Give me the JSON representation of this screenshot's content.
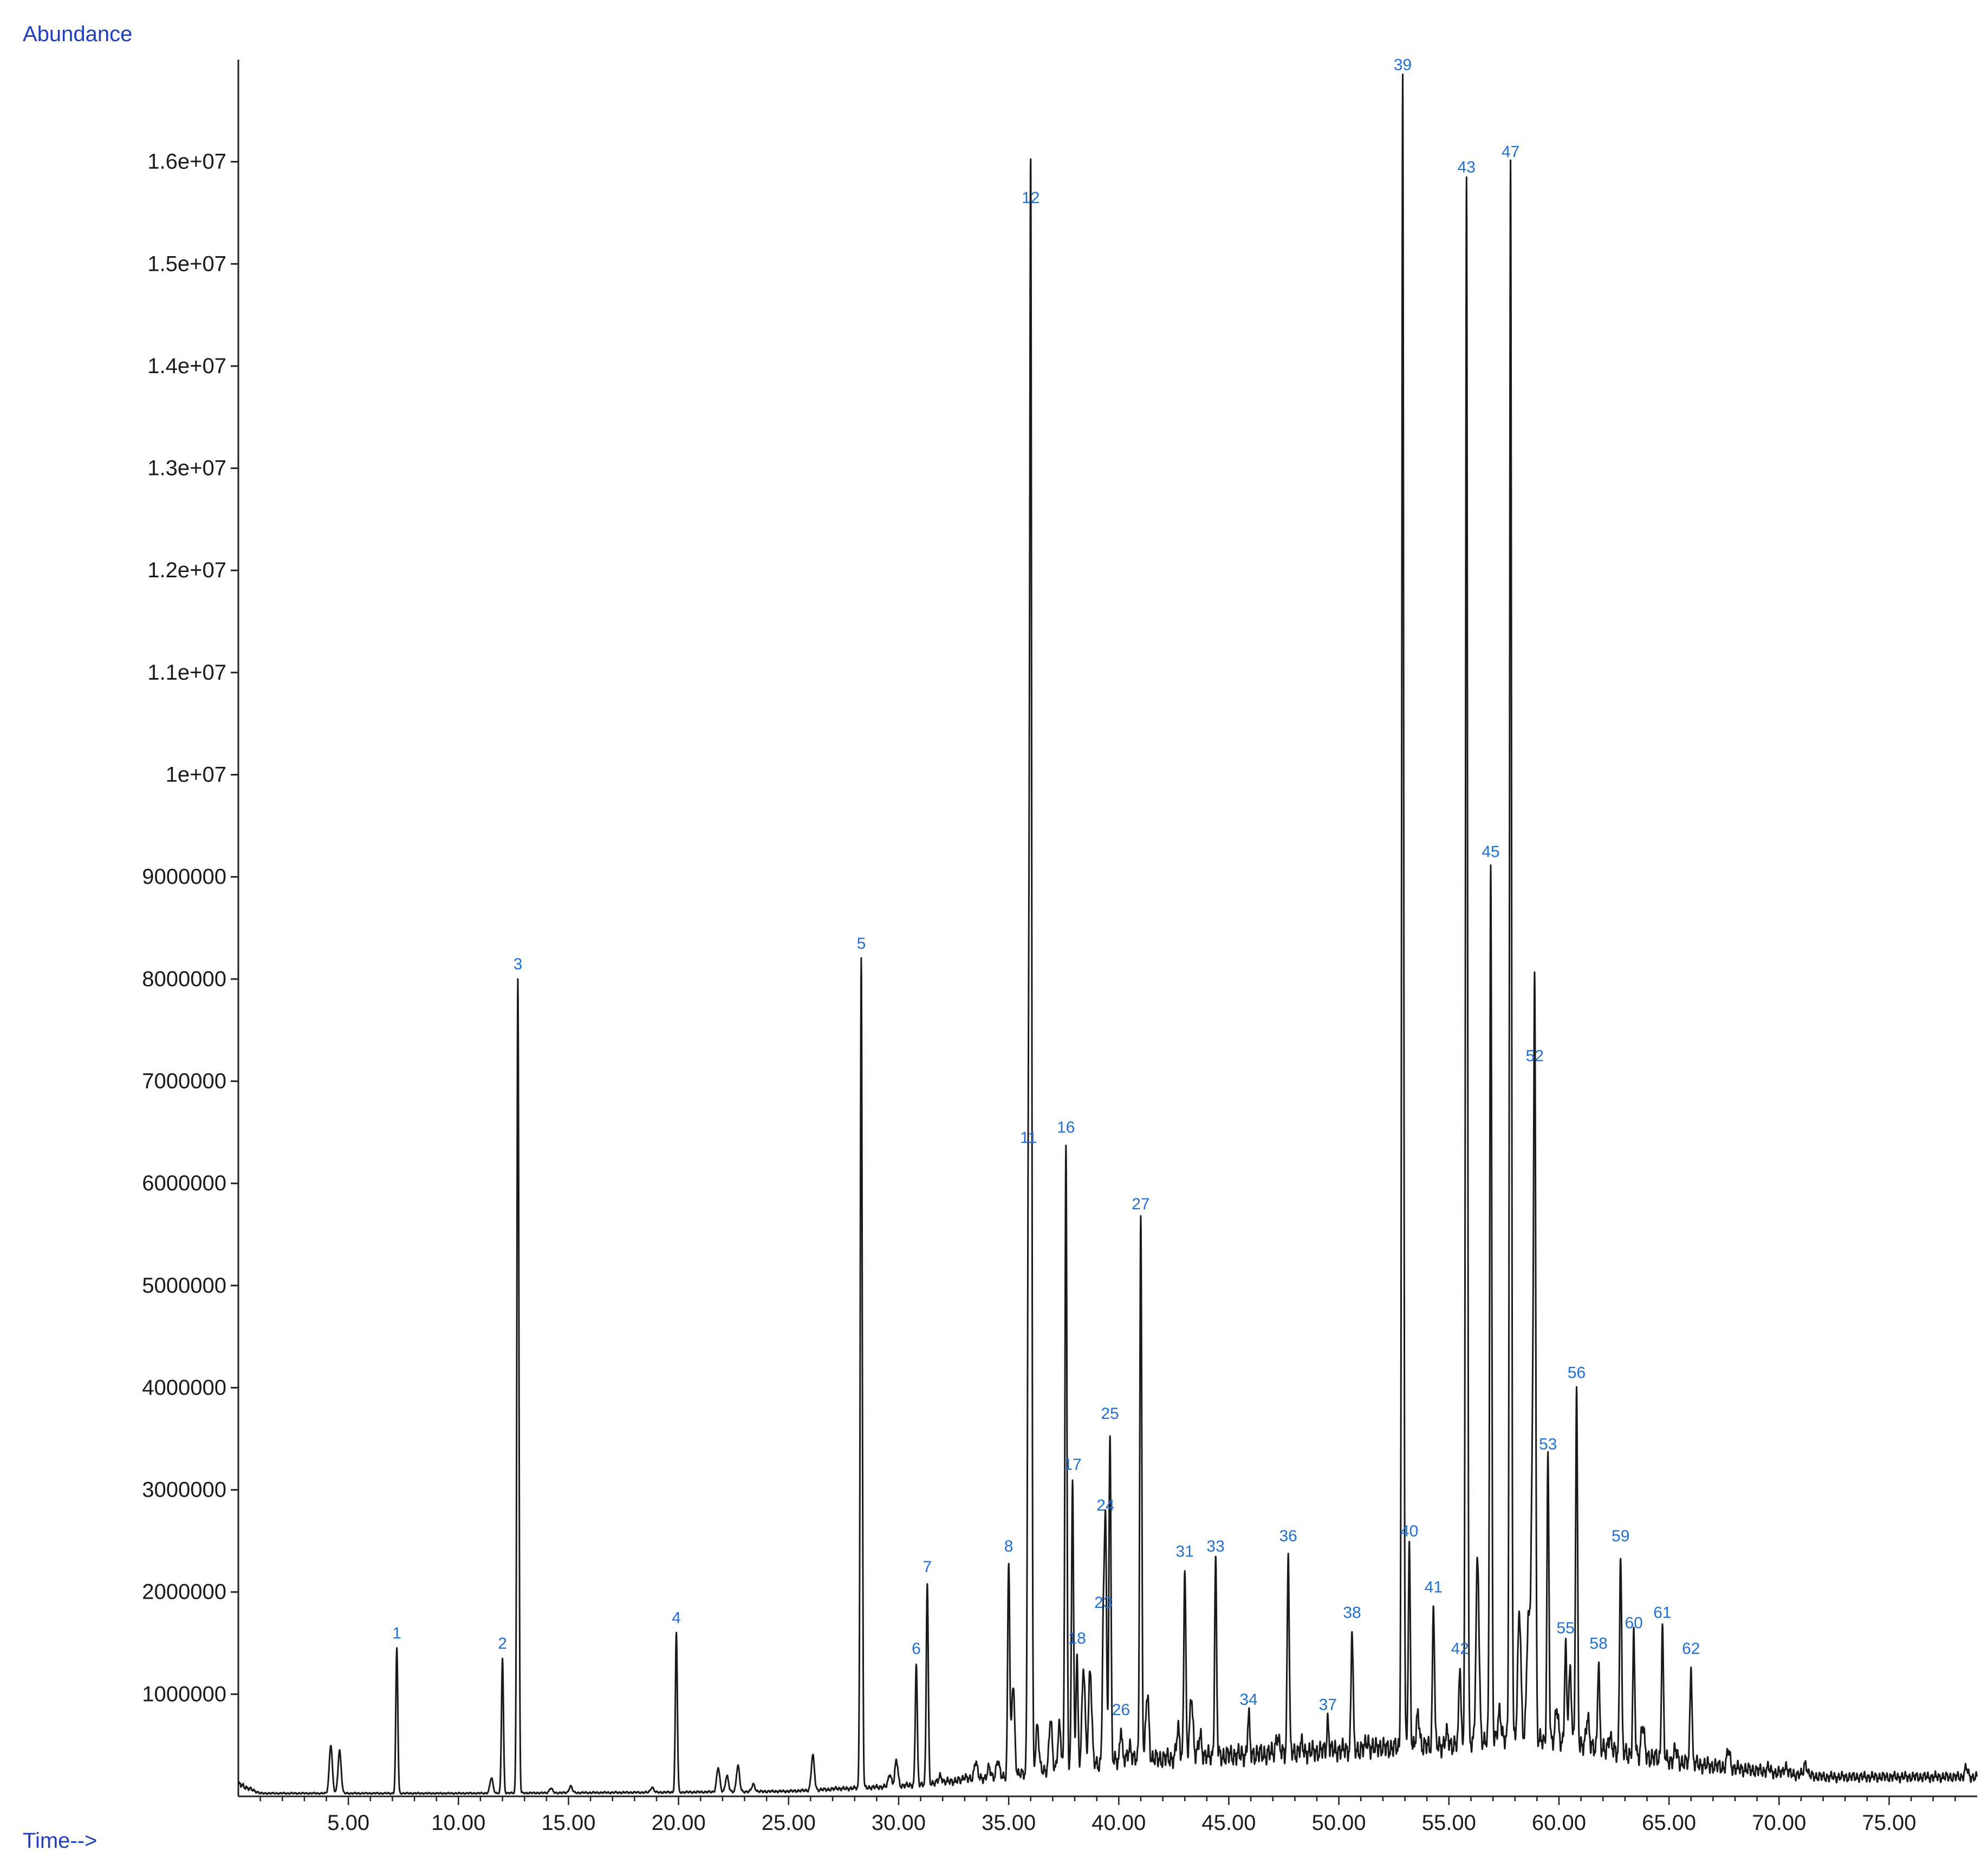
{
  "chart_data": {
    "type": "line",
    "title": "",
    "ylabel": "Abundance",
    "xlabel": "Time-->",
    "xlim": [
      0,
      79
    ],
    "ylim": [
      0,
      17000000
    ],
    "grid": false,
    "legend": "none",
    "x_ticks": [
      5,
      10,
      15,
      20,
      25,
      30,
      35,
      40,
      45,
      50,
      55,
      60,
      65,
      70,
      75
    ],
    "x_tick_labels": [
      "5.00",
      "10.00",
      "15.00",
      "20.00",
      "25.00",
      "30.00",
      "35.00",
      "40.00",
      "45.00",
      "50.00",
      "55.00",
      "60.00",
      "65.00",
      "70.00",
      "75.00"
    ],
    "y_ticks": [
      1000000,
      2000000,
      3000000,
      4000000,
      5000000,
      6000000,
      7000000,
      8000000,
      9000000,
      10000000,
      11000000,
      12000000,
      13000000,
      14000000,
      15000000,
      16000000
    ],
    "y_tick_labels": [
      "1000000",
      "2000000",
      "3000000",
      "4000000",
      "5000000",
      "6000000",
      "7000000",
      "8000000",
      "9000000",
      "1e+07",
      "1.1e+07",
      "1.2e+07",
      "1.3e+07",
      "1.4e+07",
      "1.5e+07",
      "1.6e+07"
    ],
    "peaks": [
      {
        "label": "1",
        "x": 7.2,
        "y": 1450000
      },
      {
        "label": "2",
        "x": 12.0,
        "y": 1350000
      },
      {
        "label": "3",
        "x": 12.7,
        "y": 8000000
      },
      {
        "label": "4",
        "x": 19.9,
        "y": 1600000
      },
      {
        "label": "5",
        "x": 28.3,
        "y": 8200000
      },
      {
        "label": "6",
        "x": 30.8,
        "y": 1300000
      },
      {
        "label": "7",
        "x": 31.3,
        "y": 2100000
      },
      {
        "label": "8",
        "x": 35.0,
        "y": 2300000
      },
      {
        "label": "11",
        "x": 35.9,
        "y": 6300000
      },
      {
        "label": "12",
        "x": 36.0,
        "y": 15500000
      },
      {
        "label": "16",
        "x": 37.6,
        "y": 6400000
      },
      {
        "label": "17",
        "x": 37.9,
        "y": 3100000
      },
      {
        "label": "18",
        "x": 38.1,
        "y": 1400000
      },
      {
        "label": "23",
        "x": 39.3,
        "y": 1750000
      },
      {
        "label": "24",
        "x": 39.4,
        "y": 2700000
      },
      {
        "label": "25",
        "x": 39.6,
        "y": 3600000
      },
      {
        "label": "26",
        "x": 40.1,
        "y": 700000
      },
      {
        "label": "27",
        "x": 41.0,
        "y": 5650000
      },
      {
        "label": "31",
        "x": 43.0,
        "y": 2250000
      },
      {
        "label": "33",
        "x": 44.4,
        "y": 2300000
      },
      {
        "label": "34",
        "x": 45.9,
        "y": 800000
      },
      {
        "label": "36",
        "x": 47.7,
        "y": 2400000
      },
      {
        "label": "37",
        "x": 49.5,
        "y": 750000
      },
      {
        "label": "38",
        "x": 50.6,
        "y": 1650000
      },
      {
        "label": "39",
        "x": 52.9,
        "y": 16800000
      },
      {
        "label": "40",
        "x": 53.2,
        "y": 2450000
      },
      {
        "label": "41",
        "x": 54.3,
        "y": 1900000
      },
      {
        "label": "42",
        "x": 55.5,
        "y": 1300000
      },
      {
        "label": "43",
        "x": 55.8,
        "y": 15800000
      },
      {
        "label": "45",
        "x": 56.9,
        "y": 9100000
      },
      {
        "label": "47",
        "x": 57.8,
        "y": 15950000
      },
      {
        "label": "52",
        "x": 58.9,
        "y": 7100000
      },
      {
        "label": "53",
        "x": 59.5,
        "y": 3300000
      },
      {
        "label": "55",
        "x": 60.3,
        "y": 1500000
      },
      {
        "label": "56",
        "x": 60.8,
        "y": 4000000
      },
      {
        "label": "58",
        "x": 61.8,
        "y": 1350000
      },
      {
        "label": "59",
        "x": 62.8,
        "y": 2400000
      },
      {
        "label": "60",
        "x": 63.4,
        "y": 1550000
      },
      {
        "label": "61",
        "x": 64.7,
        "y": 1650000
      },
      {
        "label": "62",
        "x": 66.0,
        "y": 1300000
      }
    ],
    "minor_peaks": [
      {
        "x": 4.2,
        "y": 500000
      },
      {
        "x": 4.6,
        "y": 450000
      },
      {
        "x": 11.5,
        "y": 180000
      },
      {
        "x": 14.2,
        "y": 80000
      },
      {
        "x": 15.1,
        "y": 100000
      },
      {
        "x": 18.8,
        "y": 90000
      },
      {
        "x": 21.8,
        "y": 280000
      },
      {
        "x": 22.2,
        "y": 200000
      },
      {
        "x": 22.7,
        "y": 300000
      },
      {
        "x": 23.4,
        "y": 120000
      },
      {
        "x": 26.1,
        "y": 400000
      },
      {
        "x": 27.2,
        "y": 80000
      },
      {
        "x": 29.6,
        "y": 220000
      },
      {
        "x": 29.9,
        "y": 350000
      },
      {
        "x": 31.9,
        "y": 200000
      },
      {
        "x": 33.0,
        "y": 200000
      },
      {
        "x": 33.5,
        "y": 350000
      },
      {
        "x": 34.1,
        "y": 280000
      },
      {
        "x": 34.5,
        "y": 350000
      },
      {
        "x": 35.2,
        "y": 1100000
      },
      {
        "x": 36.3,
        "y": 700000
      },
      {
        "x": 36.9,
        "y": 750000
      },
      {
        "x": 37.3,
        "y": 700000
      },
      {
        "x": 38.4,
        "y": 1250000
      },
      {
        "x": 38.7,
        "y": 1250000
      },
      {
        "x": 40.5,
        "y": 500000
      },
      {
        "x": 41.3,
        "y": 1000000
      },
      {
        "x": 42.0,
        "y": 350000
      },
      {
        "x": 42.7,
        "y": 650000
      },
      {
        "x": 43.3,
        "y": 1000000
      },
      {
        "x": 43.7,
        "y": 600000
      },
      {
        "x": 45.3,
        "y": 300000
      },
      {
        "x": 46.7,
        "y": 300000
      },
      {
        "x": 47.2,
        "y": 600000
      },
      {
        "x": 48.3,
        "y": 500000
      },
      {
        "x": 48.9,
        "y": 400000
      },
      {
        "x": 51.3,
        "y": 550000
      },
      {
        "x": 51.8,
        "y": 500000
      },
      {
        "x": 52.3,
        "y": 400000
      },
      {
        "x": 53.6,
        "y": 800000
      },
      {
        "x": 54.9,
        "y": 600000
      },
      {
        "x": 56.3,
        "y": 2300000
      },
      {
        "x": 57.3,
        "y": 800000
      },
      {
        "x": 58.2,
        "y": 1800000
      },
      {
        "x": 58.6,
        "y": 1700000
      },
      {
        "x": 58.8,
        "y": 3300000
      },
      {
        "x": 59.9,
        "y": 900000
      },
      {
        "x": 60.5,
        "y": 1200000
      },
      {
        "x": 61.3,
        "y": 800000
      },
      {
        "x": 62.3,
        "y": 600000
      },
      {
        "x": 63.8,
        "y": 700000
      },
      {
        "x": 65.3,
        "y": 450000
      },
      {
        "x": 67.7,
        "y": 450000
      },
      {
        "x": 69.5,
        "y": 280000
      },
      {
        "x": 70.3,
        "y": 300000
      },
      {
        "x": 71.2,
        "y": 330000
      },
      {
        "x": 78.5,
        "y": 280000
      }
    ],
    "baseline": [
      [
        0.0,
        120000
      ],
      [
        1.0,
        30000
      ],
      [
        5.0,
        30000
      ],
      [
        10.0,
        30000
      ],
      [
        15.0,
        35000
      ],
      [
        20.0,
        40000
      ],
      [
        25.0,
        50000
      ],
      [
        30.0,
        100000
      ],
      [
        35.0,
        200000
      ],
      [
        40.0,
        350000
      ],
      [
        45.0,
        400000
      ],
      [
        50.0,
        450000
      ],
      [
        55.0,
        500000
      ],
      [
        58.0,
        600000
      ],
      [
        60.0,
        500000
      ],
      [
        63.0,
        420000
      ],
      [
        66.0,
        320000
      ],
      [
        70.0,
        230000
      ],
      [
        72.0,
        190000
      ],
      [
        79.0,
        190000
      ]
    ],
    "colors": {
      "trace": "#1a1a1a",
      "axis": "#222222",
      "tick_text": "#1a1a1a",
      "peak_label": "#1f6fd8",
      "axis_title": "#1f3fbf"
    }
  }
}
